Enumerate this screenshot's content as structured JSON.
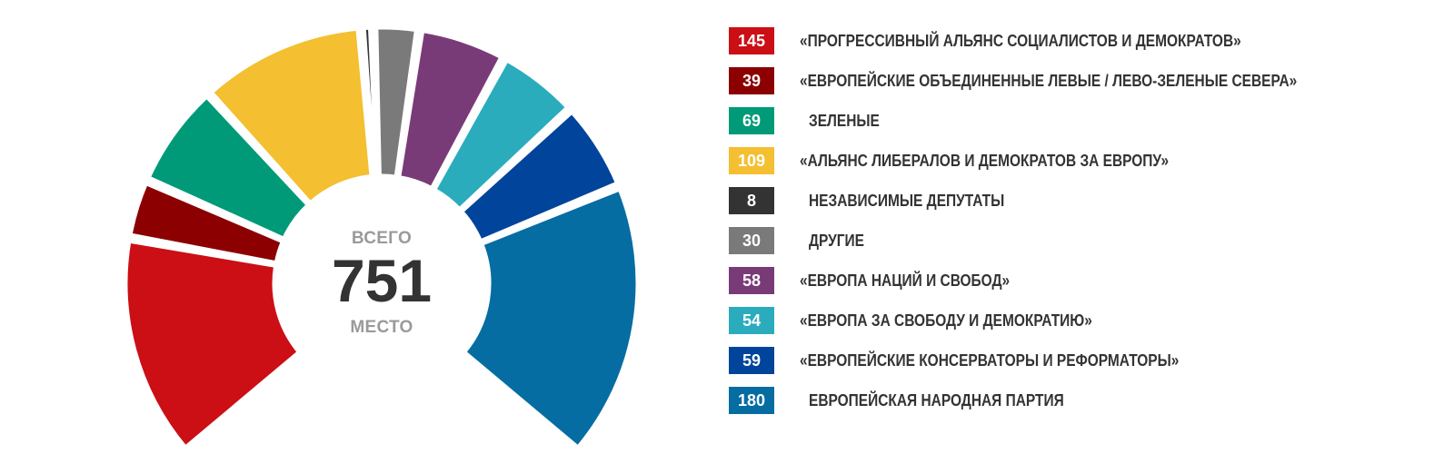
{
  "chart_data": {
    "type": "pie",
    "subtype": "semicircle-donut",
    "center": {
      "top_label": "ВСЕГО",
      "total": "751",
      "bottom_label": "МЕСТО"
    },
    "series": [
      {
        "label": "«ПРОГРЕССИВНЫЙ АЛЬЯНС СОЦИАЛИСТОВ И ДЕМОКРАТОВ»",
        "value": 145,
        "color": "#cc0e15",
        "indent": false
      },
      {
        "label": "«ЕВРОПЕЙСКИЕ ОБЪЕДИНЕННЫЕ ЛЕВЫЕ / ЛЕВО-ЗЕЛЕНЫЕ СЕВЕРА»",
        "value": 39,
        "color": "#8c0002",
        "indent": false
      },
      {
        "label": "ЗЕЛЕНЫЕ",
        "value": 69,
        "color": "#009a79",
        "indent": true
      },
      {
        "label": "«АЛЬЯНС ЛИБЕРАЛОВ И ДЕМОКРАТОВ ЗА ЕВРОПУ»",
        "value": 109,
        "color": "#f4bf30",
        "indent": false
      },
      {
        "label": "НЕЗАВИСИМЫЕ ДЕПУТАТЫ",
        "value": 8,
        "color": "#333333",
        "indent": true
      },
      {
        "label": "ДРУГИЕ",
        "value": 30,
        "color": "#7a7a7a",
        "indent": true
      },
      {
        "label": "«ЕВРОПА НАЦИЙ И СВОБОД»",
        "value": 58,
        "color": "#793b78",
        "indent": false
      },
      {
        "label": "«ЕВРОПА ЗА СВОБОДУ И ДЕМОКРАТИЮ»",
        "value": 54,
        "color": "#2aacbd",
        "indent": false
      },
      {
        "label": "«ЕВРОПЕЙСКИЕ КОНСЕРВАТОРЫ И РЕФОРМАТОРЫ»",
        "value": 59,
        "color": "#00449b",
        "indent": false
      },
      {
        "label": "ЕВРОПЕЙСКАЯ НАРОДНАЯ ПАРТИЯ",
        "value": 180,
        "color": "#056da2",
        "indent": true
      }
    ]
  }
}
